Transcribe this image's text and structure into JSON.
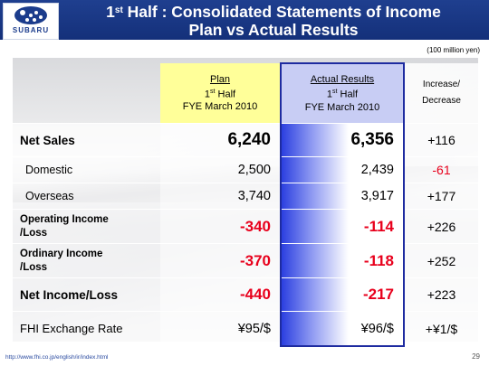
{
  "header": {
    "logo_text": "SUBARU",
    "title_line1_pre": "1",
    "title_line1_sup": "st",
    "title_line1_post": " Half : Consolidated Statements of Income",
    "title_line2": "Plan vs Actual Results"
  },
  "units": "(100 million yen)",
  "table": {
    "plan_header": {
      "line1": "Plan",
      "line2_pre": "1",
      "line2_sup": "st",
      "line2_post": " Half",
      "line3": "FYE March 2010"
    },
    "actual_header": {
      "line1": "Actual Results",
      "line2_pre": "1",
      "line2_sup": "st",
      "line2_post": " Half",
      "line3": "FYE March 2010"
    },
    "increase_header": {
      "line1": "Increase/",
      "line2": "Decrease"
    },
    "rows": [
      {
        "label": "Net Sales",
        "plan": "6,240",
        "actual": "6,356",
        "change": "+116"
      },
      {
        "label": "Domestic",
        "plan": "2,500",
        "actual": "2,439",
        "change": "-61"
      },
      {
        "label": "Overseas",
        "plan": "3,740",
        "actual": "3,917",
        "change": "+177"
      },
      {
        "label_line1": "Operating Income",
        "label_line2": "/Loss",
        "plan": "-340",
        "actual": "-114",
        "change": "+226"
      },
      {
        "label_line1": "Ordinary Income",
        "label_line2": "/Loss",
        "plan": "-370",
        "actual": "-118",
        "change": "+252"
      },
      {
        "label": "Net Income/Loss",
        "plan": "-440",
        "actual": "-217",
        "change": "+223"
      },
      {
        "label": "FHI Exchange Rate",
        "plan": "¥95/$",
        "actual": "¥96/$",
        "change": "+¥1/$"
      }
    ]
  },
  "footer": {
    "url": "http://www.fhi.co.jp/english/ir/index.html",
    "page_number": "29"
  },
  "colors": {
    "header_blue": "#1b3c8c",
    "plan_yellow": "#ffff99",
    "actual_blue": "#2b3fe0",
    "negative_red": "#e8001c"
  }
}
